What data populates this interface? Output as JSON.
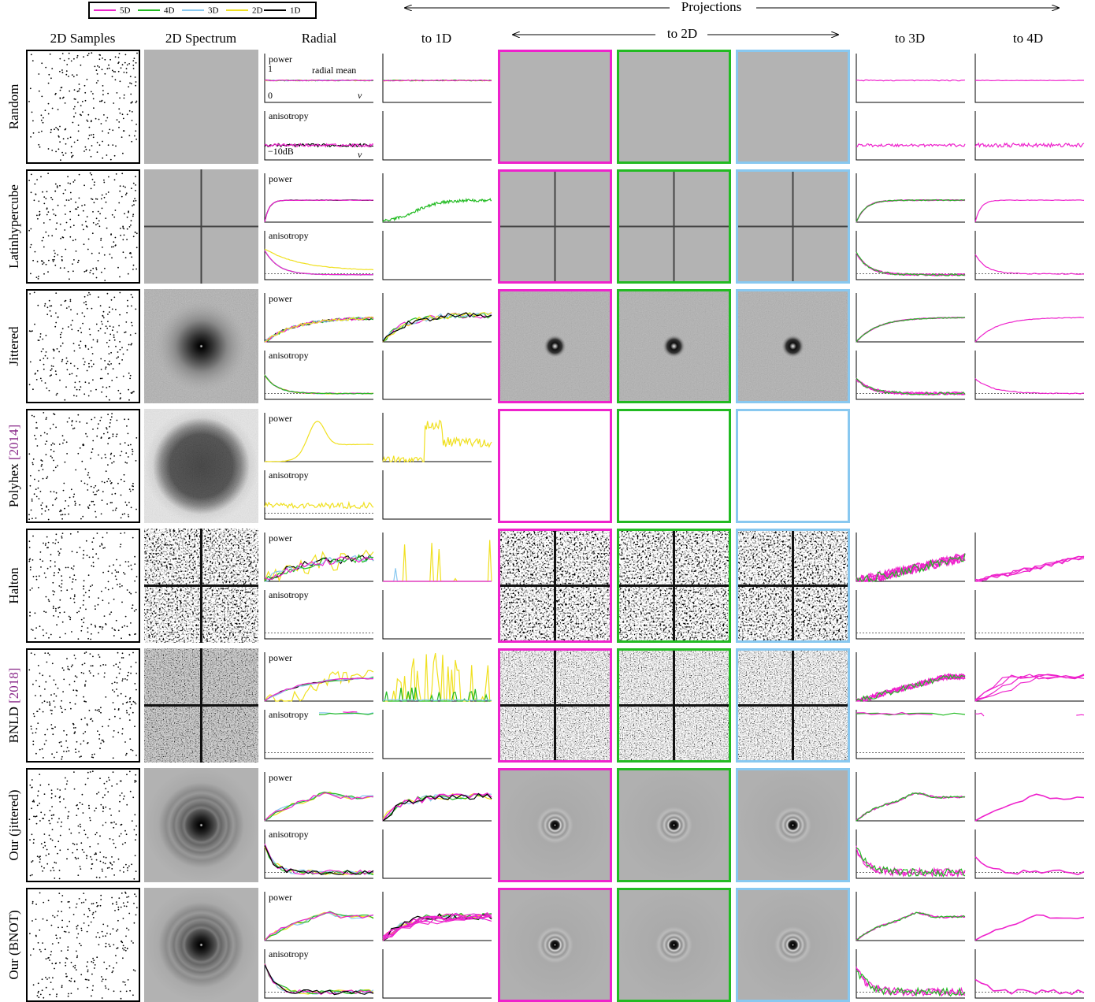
{
  "legend": [
    {
      "name": "5D",
      "color": "#ee22cc"
    },
    {
      "name": "4D",
      "color": "#22bb22"
    },
    {
      "name": "3D",
      "color": "#88c8f0"
    },
    {
      "name": "2D",
      "color": "#f0e020"
    },
    {
      "name": "1D",
      "color": "#000000"
    }
  ],
  "header": {
    "projections": "Projections",
    "to_2d": "to 2D"
  },
  "columns": {
    "samples": "2D Samples",
    "spectrum": "2D Spectrum",
    "radial": "Radial",
    "to_1d": "to 1D",
    "to_3d": "to 3D",
    "to_4d": "to 4D"
  },
  "rows": [
    {
      "label": "Random"
    },
    {
      "label": "Latinhypercube"
    },
    {
      "label": "Jittered"
    },
    {
      "label": "Polyhex",
      "cite": "[2014]"
    },
    {
      "label": "Halton"
    },
    {
      "label": "BNLD",
      "cite": "[2018]"
    },
    {
      "label": "Our (jittered)"
    },
    {
      "label": "Our (BNOT)"
    }
  ],
  "annotations": {
    "power": "power",
    "anisotropy": "anisotropy",
    "one": "1",
    "radial_mean": "radial mean",
    "zero": "0",
    "nu": "ν",
    "db": "−10dB"
  }
}
